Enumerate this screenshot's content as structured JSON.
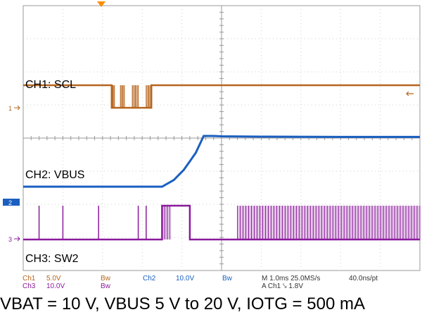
{
  "chart_data": {
    "type": "line",
    "instrument": "oscilloscope",
    "grid": true,
    "xlim": [
      -5.0,
      5.0
    ],
    "x_unit": "ms",
    "series": [
      {
        "name": "CH1: SCL",
        "channel": "1",
        "color": "#b5651d",
        "points": [
          [
            -5.0,
            1.0
          ],
          [
            -2.77,
            1.0
          ],
          [
            -2.77,
            0.0
          ],
          [
            -1.77,
            0.0
          ],
          [
            -1.77,
            1.0
          ],
          [
            5.0,
            1.0
          ]
        ],
        "bursts": [
          [
            -2.77,
            -2.7
          ],
          [
            -2.55,
            -2.45
          ],
          [
            -2.25,
            -2.1
          ],
          [
            -1.9,
            -1.77
          ]
        ]
      },
      {
        "name": "CH2: VBUS",
        "channel": "2",
        "color": "#1a5fc0",
        "points": [
          [
            -5.0,
            5.0
          ],
          [
            -1.5,
            5.0
          ],
          [
            -1.2,
            7.0
          ],
          [
            -0.95,
            10.0
          ],
          [
            -0.8,
            12.5
          ],
          [
            -0.65,
            15.0
          ],
          [
            -0.45,
            20.0
          ],
          [
            -0.2,
            20.0
          ],
          [
            0.0,
            19.9
          ],
          [
            1.0,
            19.8
          ],
          [
            3.0,
            19.7
          ],
          [
            5.0,
            19.7
          ]
        ]
      },
      {
        "name": "CH3: SW2",
        "channel": "3",
        "color": "#8b1a9c",
        "points": [
          [
            -5.0,
            0.0
          ],
          [
            -1.5,
            0.0
          ],
          [
            -1.5,
            10.0
          ],
          [
            -0.8,
            10.0
          ],
          [
            -0.8,
            0.0
          ],
          [
            5.0,
            0.0
          ]
        ],
        "spikes": [
          -4.6,
          -4.0,
          -3.1,
          -2.1,
          -1.9
        ],
        "bursts": [
          [
            -1.5,
            -1.3
          ],
          [
            0.4,
            5.0
          ]
        ]
      }
    ],
    "labels": {
      "ch1": "CH1: SCL",
      "ch2": "CH2: VBUS",
      "ch3": "CH3: SW2"
    },
    "markers": {
      "m1": "1",
      "m2": "2",
      "m3": "3"
    },
    "readout": {
      "row1": [
        {
          "text": "Ch1",
          "color": "#b5651d"
        },
        {
          "text": "5.0V",
          "color": "#b5651d"
        },
        {
          "text": "Bw",
          "color": "#b5651d"
        },
        {
          "text": "Ch2",
          "color": "#1a5fc0"
        },
        {
          "text": "10.0V",
          "color": "#1a5fc0"
        },
        {
          "text": "Bw",
          "color": "#1a5fc0"
        },
        {
          "text": "M 1.0ms 25.0MS/s",
          "color": "#333333"
        },
        {
          "text": "40.0ns/pt",
          "color": "#333333"
        }
      ],
      "row2": [
        {
          "text": "Ch3",
          "color": "#8b1a9c"
        },
        {
          "text": "10.0V",
          "color": "#8b1a9c"
        },
        {
          "text": "Bw",
          "color": "#8b1a9c"
        },
        {
          "text": "A  Ch1  ⤥  1.8V",
          "color": "#333333"
        }
      ]
    },
    "caption": "VBAT = 10 V, VBUS 5 V to 20 V, IOTG = 500 mA"
  }
}
